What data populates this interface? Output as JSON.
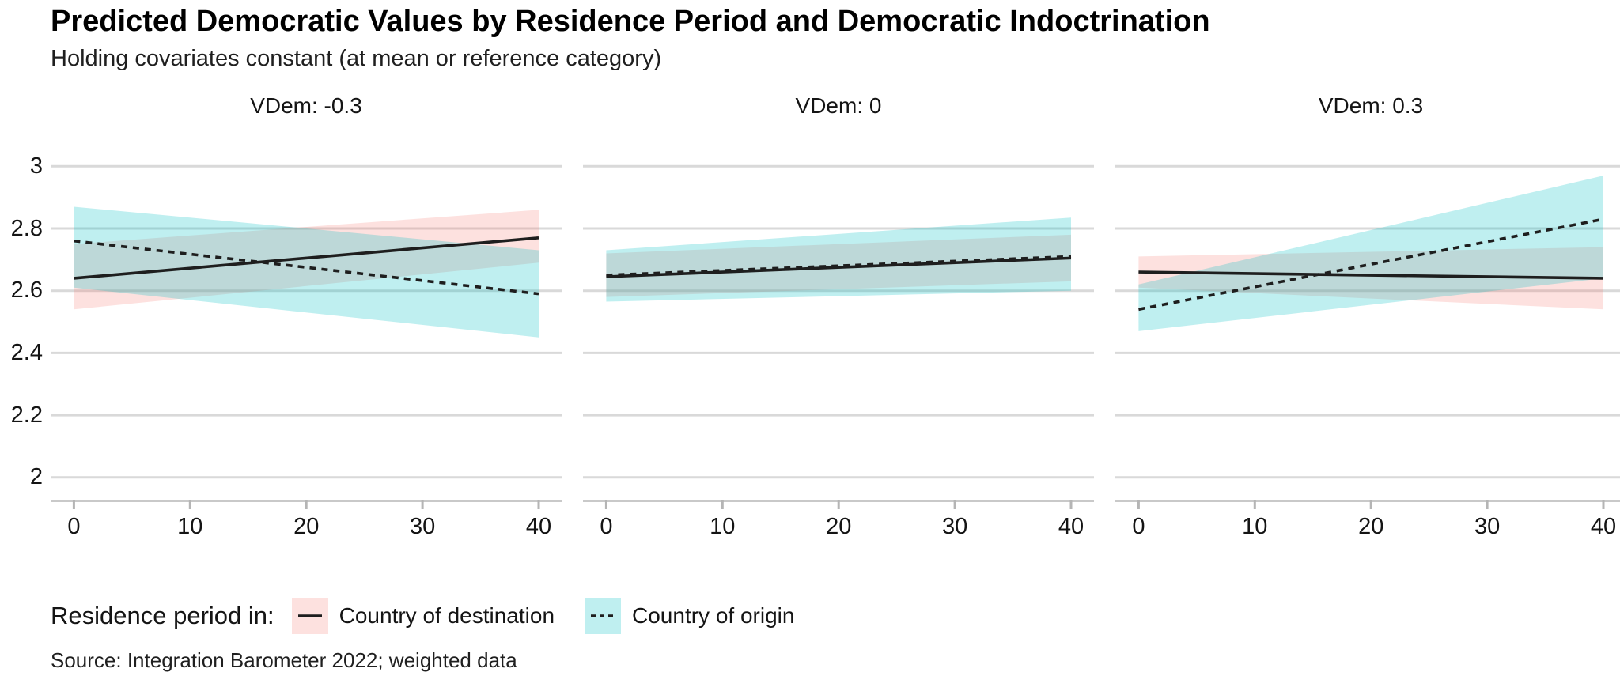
{
  "page": {
    "title": "Predicted Democratic Values by Residence Period and Democratic Indoctrination",
    "subtitle": "Holding covariates constant (at mean or reference category)",
    "caption": "Source: Integration Barometer 2022; weighted data"
  },
  "legend": {
    "title": "Residence period in:",
    "position": "bottom",
    "items": [
      {
        "label": "Country of destination",
        "line_style": "solid",
        "key_fill": "#F8766D"
      },
      {
        "label": "Country of origin",
        "line_style": "dashed",
        "key_fill": "#00BFC4"
      }
    ]
  },
  "colors": {
    "line": "#1e1e1e",
    "destination_ribbon": "rgba(248,118,109,0.22)",
    "origin_ribbon": "rgba(0,191,196,0.25)",
    "gridline": "#d9d9d9",
    "axis_line": "#c9c9c9",
    "tick_mark": "#b5b5b5",
    "text": "#141414"
  },
  "chart_data": {
    "type": "line",
    "subtype": "faceted ribbon (confidence band) plot, straight fitted lines",
    "grid": "horizontal gridlines only, white background",
    "legend_position": "bottom",
    "x_range": [
      0,
      40
    ],
    "y_range": [
      2,
      3
    ],
    "xticks": [
      0,
      10,
      20,
      30,
      40
    ],
    "yticks": [
      "3",
      "2.8",
      "2.6",
      "2.4",
      "2.2",
      "2"
    ],
    "ytick_values": [
      3,
      2.8,
      2.6,
      2.4,
      2.2,
      2
    ],
    "facets": [
      {
        "label": "VDem: -0.3",
        "series": [
          {
            "name": "Country of destination",
            "style": "solid",
            "x": [
              0,
              40
            ],
            "y": [
              2.64,
              2.77
            ],
            "ci_lower": [
              2.54,
              2.69
            ],
            "ci_upper": [
              2.75,
              2.86
            ]
          },
          {
            "name": "Country of origin",
            "style": "dashed",
            "x": [
              0,
              40
            ],
            "y": [
              2.76,
              2.59
            ],
            "ci_lower": [
              2.61,
              2.45
            ],
            "ci_upper": [
              2.87,
              2.73
            ]
          }
        ]
      },
      {
        "label": "VDem: 0",
        "series": [
          {
            "name": "Country of destination",
            "style": "solid",
            "x": [
              0,
              40
            ],
            "y": [
              2.645,
              2.705
            ],
            "ci_lower": [
              2.58,
              2.63
            ],
            "ci_upper": [
              2.72,
              2.78
            ]
          },
          {
            "name": "Country of origin",
            "style": "dashed",
            "x": [
              0,
              40
            ],
            "y": [
              2.65,
              2.71
            ],
            "ci_lower": [
              2.565,
              2.6
            ],
            "ci_upper": [
              2.73,
              2.835
            ]
          }
        ]
      },
      {
        "label": "VDem: 0.3",
        "series": [
          {
            "name": "Country of destination",
            "style": "solid",
            "x": [
              0,
              40
            ],
            "y": [
              2.66,
              2.64
            ],
            "ci_lower": [
              2.61,
              2.54
            ],
            "ci_upper": [
              2.71,
              2.74
            ]
          },
          {
            "name": "Country of origin",
            "style": "dashed",
            "x": [
              0,
              40
            ],
            "y": [
              2.54,
              2.83
            ],
            "ci_lower": [
              2.47,
              2.64
            ],
            "ci_upper": [
              2.62,
              2.97
            ]
          }
        ]
      }
    ]
  }
}
